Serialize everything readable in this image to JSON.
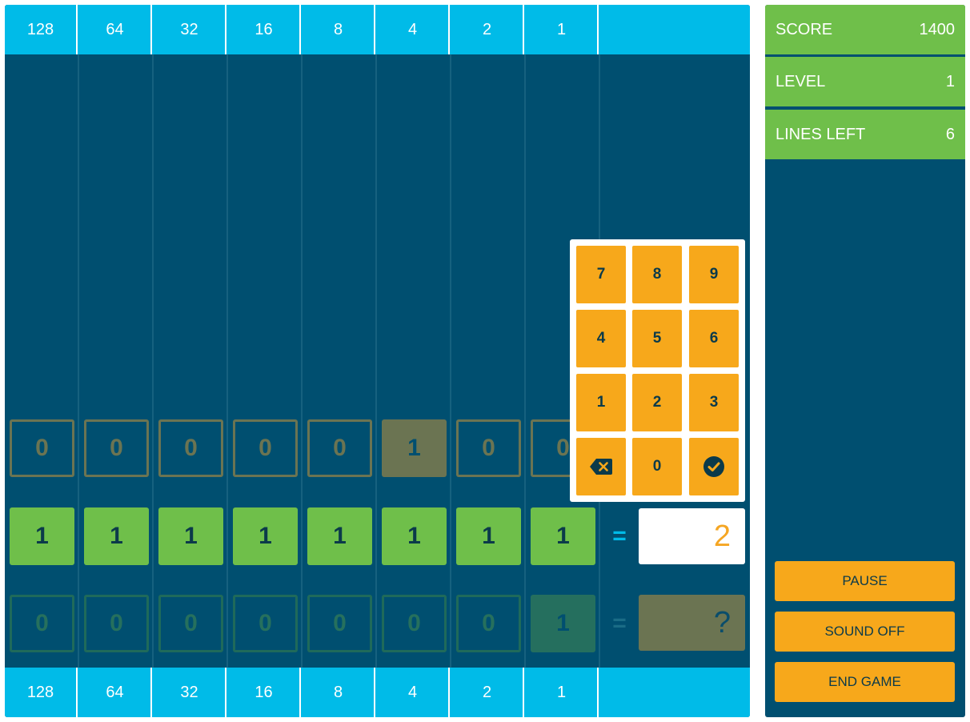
{
  "bit_values": [
    "128",
    "64",
    "32",
    "16",
    "8",
    "4",
    "2",
    "1"
  ],
  "rows": [
    {
      "bits": [
        "0",
        "0",
        "0",
        "0",
        "0",
        "1",
        "0",
        "0"
      ]
    },
    {
      "bits": [
        "1",
        "1",
        "1",
        "1",
        "1",
        "1",
        "1",
        "1"
      ],
      "equals": "=",
      "answer": "2"
    },
    {
      "bits": [
        "0",
        "0",
        "0",
        "0",
        "0",
        "0",
        "0",
        "1"
      ],
      "equals": "=",
      "answer": "?"
    }
  ],
  "keypad": {
    "keys": [
      "7",
      "8",
      "9",
      "4",
      "5",
      "6",
      "1",
      "2",
      "3"
    ],
    "zero": "0",
    "backspace_icon": "backspace-icon",
    "confirm_icon": "check-circle-icon"
  },
  "sidebar": {
    "score_label": "SCORE",
    "score_value": "1400",
    "level_label": "LEVEL",
    "level_value": "1",
    "lines_label": "LINES LEFT",
    "lines_value": "6",
    "pause_label": "PAUSE",
    "sound_label": "SOUND OFF",
    "end_label": "END GAME"
  },
  "colors": {
    "board": "#004f70",
    "header": "#00bbe8",
    "green": "#6fbf4a",
    "orange": "#f7a81b",
    "olive": "#6b7452"
  }
}
